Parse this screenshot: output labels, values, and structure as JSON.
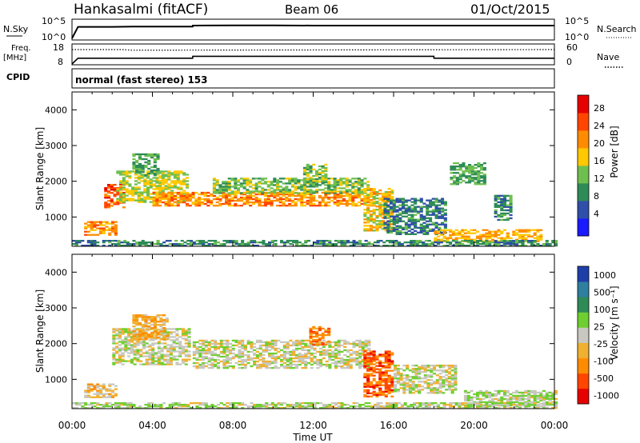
{
  "header": {
    "station": "Hankasalmi (fitACF)",
    "beam": "Beam 06",
    "date": "01/Oct/2015"
  },
  "nsky_panel": {
    "left_label": "N.Sky",
    "left_ticks": [
      "10^5",
      "10^0"
    ],
    "right_ticks": [
      "10^5",
      "10^0"
    ],
    "right_label": "N.Search"
  },
  "freq_panel": {
    "left_label_line1": "Freq.",
    "left_label_line2": "[MHz]",
    "left_ticks": [
      "18",
      "8"
    ],
    "right_ticks": [
      "60",
      "0"
    ],
    "right_label": "Nave"
  },
  "cpid_panel": {
    "label": "CPID",
    "text": "normal (fast stereo) 153"
  },
  "x_axis": {
    "tick_labels": [
      "00:00",
      "04:00",
      "08:00",
      "12:00",
      "16:00",
      "20:00",
      "00:00"
    ],
    "label": "Time UT"
  },
  "power_panel": {
    "ylabel": "Slant Range [km]",
    "yticks": [
      "4000",
      "3000",
      "2000",
      "1000"
    ],
    "colorbar_label": "Power [dB]",
    "colorbar_ticks": [
      "28",
      "24",
      "20",
      "16",
      "12",
      "8",
      "4"
    ]
  },
  "velocity_panel": {
    "ylabel": "Slant Range [km]",
    "yticks": [
      "4000",
      "3000",
      "2000",
      "1000"
    ],
    "colorbar_label": "Velocity [m s⁻¹]",
    "colorbar_ticks": [
      "1000",
      "500",
      "100",
      "25",
      "-25",
      "-100",
      "-500",
      "-1000"
    ]
  },
  "colors": {
    "power_scale": [
      "#1a1aff",
      "#2f4fa8",
      "#2e8b57",
      "#6fbf50",
      "#ffc800",
      "#ff8c00",
      "#ff4500",
      "#e60000"
    ],
    "velocity_scale": [
      "#1f3fa8",
      "#2f7fa0",
      "#2e8b57",
      "#6fcf30",
      "#c8c8c0",
      "#f0b030",
      "#ff8c00",
      "#ff4500",
      "#e60000"
    ]
  },
  "chart_data": [
    {
      "type": "line",
      "title": "N.Sky / N.Search",
      "x_unit": "hours UT",
      "x": [
        0,
        0.3,
        1,
        2,
        3,
        4,
        5,
        6,
        6.01,
        8,
        10,
        12,
        14,
        16,
        18,
        20,
        22,
        24
      ],
      "y_log10": [
        0,
        4.5,
        4.5,
        4.5,
        4.6,
        4.6,
        4.6,
        4.6,
        5.0,
        5.1,
        5.1,
        5.0,
        5.0,
        5.0,
        5.0,
        5.0,
        5.0,
        5.0
      ],
      "ylim_log10": [
        0,
        5
      ]
    },
    {
      "type": "line",
      "title": "Freq. [MHz] / Nave",
      "x_unit": "hours UT",
      "series": [
        {
          "name": "Freq.",
          "x": [
            0,
            0.3,
            6,
            6.01,
            18,
            18.01,
            24
          ],
          "values": [
            8,
            11,
            11,
            12,
            12,
            11,
            11
          ]
        },
        {
          "name": "Nave",
          "x": [
            0,
            2.5,
            3,
            24
          ],
          "values": [
            45,
            45,
            43,
            45
          ]
        }
      ],
      "ylim_left": [
        8,
        18
      ],
      "ylim_right": [
        0,
        60
      ]
    },
    {
      "type": "heatmap",
      "title": "Power [dB]",
      "xlim": [
        0,
        24
      ],
      "ylim": [
        180,
        4500
      ],
      "value_range": [
        0,
        32
      ],
      "regions": [
        {
          "t0": 0.6,
          "t1": 2.1,
          "r0": 480,
          "r1": 860,
          "value": 22
        },
        {
          "t0": 1.6,
          "t1": 2.6,
          "r0": 1250,
          "r1": 1900,
          "value": 26
        },
        {
          "t0": 2.2,
          "t1": 5.8,
          "r0": 1400,
          "r1": 2300,
          "value": 16
        },
        {
          "t0": 3.0,
          "t1": 4.3,
          "r0": 2150,
          "r1": 2750,
          "value": 12
        },
        {
          "t0": 4.0,
          "t1": 15.0,
          "r0": 1300,
          "r1": 1700,
          "value": 22
        },
        {
          "t0": 7.0,
          "t1": 14.8,
          "r0": 1650,
          "r1": 2100,
          "value": 14
        },
        {
          "t0": 11.5,
          "t1": 12.6,
          "r0": 1950,
          "r1": 2450,
          "value": 14
        },
        {
          "t0": 14.5,
          "t1": 16.0,
          "r0": 600,
          "r1": 1800,
          "value": 18
        },
        {
          "t0": 15.5,
          "t1": 18.5,
          "r0": 500,
          "r1": 1500,
          "value": 9
        },
        {
          "t0": 18.0,
          "t1": 23.3,
          "r0": 300,
          "r1": 650,
          "value": 20
        },
        {
          "t0": 18.8,
          "t1": 20.5,
          "r0": 1900,
          "r1": 2500,
          "value": 12
        },
        {
          "t0": 21.0,
          "t1": 21.8,
          "r0": 900,
          "r1": 1600,
          "value": 10
        },
        {
          "t0": 0.0,
          "t1": 24.0,
          "r0": 180,
          "r1": 350,
          "value": 10
        }
      ]
    },
    {
      "type": "heatmap",
      "title": "Velocity [m s⁻¹]",
      "xlim": [
        0,
        24
      ],
      "ylim": [
        180,
        4500
      ],
      "value_range": [
        -1000,
        1000
      ],
      "regions": [
        {
          "t0": 0.6,
          "t1": 2.1,
          "r0": 480,
          "r1": 860,
          "value": -200
        },
        {
          "t0": 2.0,
          "t1": 5.8,
          "r0": 1400,
          "r1": 2400,
          "value": 0
        },
        {
          "t0": 3.0,
          "t1": 4.8,
          "r0": 2100,
          "r1": 2800,
          "value": -300
        },
        {
          "t0": 6.0,
          "t1": 14.8,
          "r0": 1300,
          "r1": 2100,
          "value": 0
        },
        {
          "t0": 11.8,
          "t1": 12.8,
          "r0": 1950,
          "r1": 2450,
          "value": -500
        },
        {
          "t0": 14.5,
          "t1": 16.0,
          "r0": 500,
          "r1": 1800,
          "value": -600
        },
        {
          "t0": 16.0,
          "t1": 19.0,
          "r0": 600,
          "r1": 1400,
          "value": 0
        },
        {
          "t0": 19.5,
          "t1": 24.0,
          "r0": 250,
          "r1": 700,
          "value": 80
        },
        {
          "t0": 0.0,
          "t1": 24.0,
          "r0": 180,
          "r1": 330,
          "value": 60
        }
      ]
    }
  ]
}
